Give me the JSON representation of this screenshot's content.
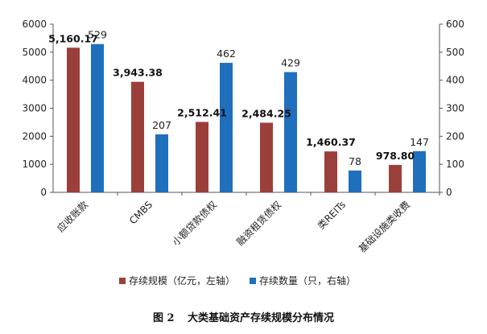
{
  "chart_data": {
    "type": "bar",
    "categories": [
      "应收账款",
      "CMBS",
      "小额贷款债权",
      "融资租赁债权",
      "类REITs",
      "基础设施类收费"
    ],
    "series": [
      {
        "name": "存续规模（亿元，左轴）",
        "axis": "left",
        "color": "#9b3f3b",
        "values": [
          5160.17,
          3943.38,
          2512.41,
          2484.25,
          1460.37,
          978.8
        ],
        "labels": [
          "5,160.17",
          "3,943.38",
          "2,512.41",
          "2,484.25",
          "1,460.37",
          "978.80"
        ]
      },
      {
        "name": "存续数量（只，右轴）",
        "axis": "right",
        "color": "#1f6fbd",
        "values": [
          529,
          207,
          462,
          429,
          78,
          147
        ],
        "labels": [
          "529",
          "207",
          "462",
          "429",
          "78",
          "147"
        ]
      }
    ],
    "y_left": {
      "min": 0,
      "max": 6000,
      "ticks": [
        0,
        1000,
        2000,
        3000,
        4000,
        5000,
        6000
      ]
    },
    "y_right": {
      "min": 0,
      "max": 600,
      "ticks": [
        0,
        100,
        200,
        300,
        400,
        500,
        600
      ]
    },
    "grid": false,
    "legend_position": "bottom"
  },
  "caption": {
    "figure_no": "图 2",
    "title": "大类基础资产存续规模分布情况"
  }
}
